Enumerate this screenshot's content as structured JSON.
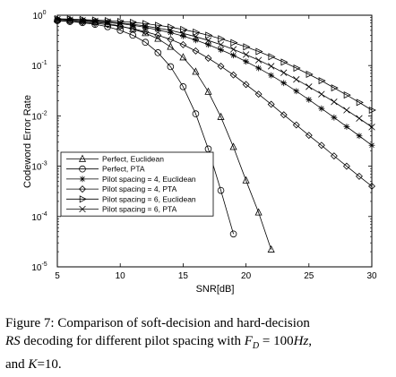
{
  "chart_data": {
    "type": "line",
    "xlabel": "SNR[dB]",
    "ylabel": "Codeword Error Rate",
    "xlim": [
      5,
      30
    ],
    "ylim_log10": [
      -5,
      0
    ],
    "y_scale": "log",
    "grid": false,
    "legend_placement": "bottom-left",
    "x_ticks": [
      5,
      10,
      15,
      20,
      25,
      30
    ],
    "x_tick_labels": [
      "5",
      "10",
      "15",
      "20",
      "25",
      "30"
    ],
    "y_ticks": [
      1e-05,
      0.0001,
      0.001,
      0.01,
      0.1,
      1
    ],
    "y_tick_labels": [
      {
        "base": "10",
        "exp": "-5"
      },
      {
        "base": "10",
        "exp": "-4"
      },
      {
        "base": "10",
        "exp": "-3"
      },
      {
        "base": "10",
        "exp": "-2"
      },
      {
        "base": "10",
        "exp": "-1"
      },
      {
        "base": "10",
        "exp": "0"
      }
    ],
    "series": [
      {
        "name": "Perfect, Euclidean",
        "marker": "triangle-up",
        "x": [
          5,
          6,
          7,
          8,
          9,
          10,
          11,
          12,
          13,
          14,
          15,
          16,
          17,
          18,
          19,
          20,
          21,
          22
        ],
        "y": [
          0.82,
          0.8,
          0.77,
          0.73,
          0.68,
          0.61,
          0.53,
          0.44,
          0.34,
          0.235,
          0.145,
          0.075,
          0.03,
          0.0095,
          0.0024,
          0.00052,
          0.00012,
          2.2e-05
        ]
      },
      {
        "name": "Perfect, PTA",
        "marker": "circle",
        "x": [
          5,
          6,
          7,
          8,
          9,
          10,
          11,
          12,
          13,
          14,
          15,
          16,
          17,
          18,
          19
        ],
        "y": [
          0.78,
          0.75,
          0.71,
          0.66,
          0.59,
          0.5,
          0.4,
          0.29,
          0.18,
          0.095,
          0.038,
          0.011,
          0.0022,
          0.00033,
          4.5e-05
        ]
      },
      {
        "name": "Pilot spacing = 4, Euclidean",
        "marker": "asterisk",
        "x": [
          5,
          6,
          7,
          8,
          9,
          10,
          11,
          12,
          13,
          14,
          15,
          16,
          17,
          18,
          19,
          20,
          21,
          22,
          23,
          24,
          25,
          26,
          27,
          28,
          29,
          30
        ],
        "y": [
          0.82,
          0.8,
          0.78,
          0.75,
          0.72,
          0.68,
          0.63,
          0.575,
          0.51,
          0.45,
          0.385,
          0.32,
          0.26,
          0.205,
          0.16,
          0.12,
          0.089,
          0.064,
          0.045,
          0.031,
          0.021,
          0.014,
          0.0093,
          0.0061,
          0.004,
          0.0026
        ]
      },
      {
        "name": "Pilot spacing = 4, PTA",
        "marker": "diamond",
        "x": [
          5,
          6,
          7,
          8,
          9,
          10,
          11,
          12,
          13,
          14,
          15,
          16,
          17,
          18,
          19,
          20,
          21,
          22,
          23,
          24,
          25,
          26,
          27,
          28,
          29,
          30
        ],
        "y": [
          0.78,
          0.76,
          0.73,
          0.69,
          0.65,
          0.6,
          0.54,
          0.47,
          0.4,
          0.33,
          0.26,
          0.195,
          0.14,
          0.097,
          0.065,
          0.042,
          0.027,
          0.017,
          0.0105,
          0.0066,
          0.0041,
          0.0026,
          0.0016,
          0.001,
          0.00063,
          0.0004
        ]
      },
      {
        "name": "Pilot spacing = 6, Euclidean",
        "marker": "triangle-right",
        "x": [
          5,
          6,
          7,
          8,
          9,
          10,
          11,
          12,
          13,
          14,
          15,
          16,
          17,
          18,
          19,
          20,
          21,
          22,
          23,
          24,
          25,
          26,
          27,
          28,
          29,
          30
        ],
        "y": [
          0.85,
          0.84,
          0.82,
          0.8,
          0.78,
          0.75,
          0.72,
          0.68,
          0.63,
          0.58,
          0.52,
          0.46,
          0.4,
          0.34,
          0.285,
          0.235,
          0.19,
          0.15,
          0.117,
          0.089,
          0.067,
          0.05,
          0.036,
          0.026,
          0.0185,
          0.013
        ]
      },
      {
        "name": "Pilot spacing = 6, PTA",
        "marker": "cross",
        "x": [
          5,
          6,
          7,
          8,
          9,
          10,
          11,
          12,
          13,
          14,
          15,
          16,
          17,
          18,
          19,
          20,
          21,
          22,
          23,
          24,
          25,
          26,
          27,
          28,
          29,
          30
        ],
        "y": [
          0.83,
          0.81,
          0.79,
          0.77,
          0.74,
          0.7,
          0.66,
          0.61,
          0.555,
          0.5,
          0.435,
          0.375,
          0.315,
          0.26,
          0.21,
          0.165,
          0.128,
          0.097,
          0.072,
          0.053,
          0.038,
          0.027,
          0.019,
          0.013,
          0.0089,
          0.006
        ]
      }
    ]
  },
  "caption": {
    "line1": "Figure 7:  Comparison of soft-decision and hard-decision",
    "line2_italic_rs": "RS",
    "line2_rest": " decoding for different pilot spacing with ",
    "line2_fd_base": "F",
    "line2_fd_sub": "D",
    "line2_value": " = 100",
    "line2_unit": "Hz",
    "line2_end": ",",
    "line3_start": "and ",
    "line3_k": "K",
    "line3_value": "=10."
  }
}
